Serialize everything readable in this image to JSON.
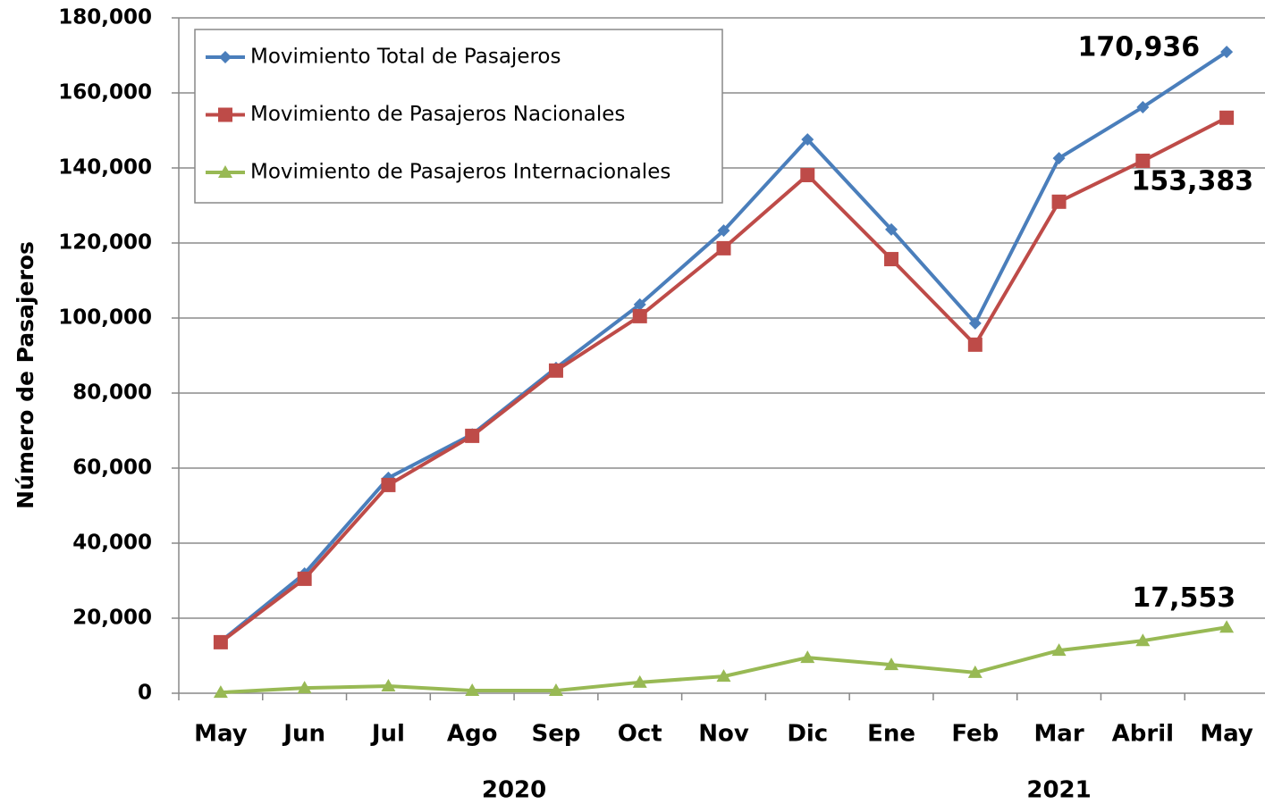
{
  "chart_data": {
    "type": "line",
    "y_label": "Número de Pasajeros",
    "categories": [
      "May",
      "Jun",
      "Jul",
      "Ago",
      "Sep",
      "Oct",
      "Nov",
      "Dic",
      "Ene",
      "Feb",
      "Mar",
      "Abril",
      "May"
    ],
    "category_groups": [
      {
        "label": "2020",
        "count": 8
      },
      {
        "label": "2021",
        "count": 5
      }
    ],
    "series": [
      {
        "name": "Movimiento Total de Pasajeros",
        "color": "#4a7ebb",
        "marker": "diamond",
        "values": [
          13800,
          31900,
          57400,
          69000,
          86700,
          103600,
          123300,
          147600,
          123600,
          98600,
          142600,
          156200,
          170936
        ],
        "value_labels": [
          null,
          null,
          null,
          null,
          null,
          null,
          null,
          null,
          null,
          null,
          null,
          null,
          "170,936"
        ]
      },
      {
        "name": "Movimiento de Pasajeros Nacionales",
        "color": "#be4b48",
        "marker": "square",
        "values": [
          13600,
          30500,
          55500,
          68600,
          86000,
          100500,
          118600,
          138100,
          115700,
          92900,
          131000,
          141900,
          153383
        ],
        "value_labels": [
          null,
          null,
          null,
          null,
          null,
          null,
          null,
          null,
          null,
          null,
          null,
          null,
          "153,383"
        ]
      },
      {
        "name": "Movimiento de Pasajeros Internacionales",
        "color": "#98b954",
        "marker": "triangle",
        "values": [
          200,
          1400,
          1900,
          700,
          700,
          2900,
          4500,
          9500,
          7600,
          5500,
          11400,
          14000,
          17553
        ],
        "value_labels": [
          null,
          null,
          null,
          null,
          null,
          null,
          null,
          null,
          null,
          null,
          null,
          null,
          "17,553"
        ]
      }
    ],
    "ylim": [
      0,
      180000
    ],
    "yticks": [
      0,
      {
        "value": 20000,
        "label": "20,000"
      },
      {
        "value": 40000,
        "label": "40,000"
      },
      {
        "value": 60000,
        "label": "60,000"
      },
      {
        "value": 80000,
        "label": "80,000"
      },
      {
        "value": 100000,
        "label": "100,000"
      },
      {
        "value": 120000,
        "label": "120,000"
      },
      {
        "value": 140000,
        "label": "140,000"
      },
      {
        "value": 160000,
        "label": "160,000"
      },
      {
        "value": 180000,
        "label": "180,000"
      }
    ],
    "grid": true,
    "legend": "upper left"
  }
}
